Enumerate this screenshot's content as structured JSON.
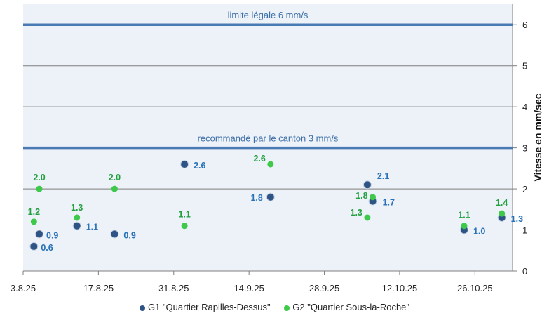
{
  "chart_data": {
    "type": "scatter",
    "ylabel": "Vitesse en mm/sec",
    "xlim": [
      "2025-08-03",
      "2025-11-02"
    ],
    "ylim": [
      0,
      6.5
    ],
    "x_ticks": [
      "3.8.25",
      "17.8.25",
      "31.8.25",
      "14.9.25",
      "28.9.25",
      "12.10.25",
      "26.10.25"
    ],
    "x_tick_dates": [
      "2025-08-03",
      "2025-08-17",
      "2025-08-31",
      "2025-09-14",
      "2025-09-28",
      "2025-10-12",
      "2025-10-26"
    ],
    "y_ticks": [
      "0",
      "1",
      "2",
      "3",
      "4",
      "5",
      "6"
    ],
    "grid": true,
    "legend_position": "bottom",
    "reference_lines": [
      {
        "y": 6,
        "label": "limite légale 6 mm/s",
        "color": "#4a7ab4"
      },
      {
        "y": 3,
        "label": "recommandé par le canton 3 mm/s",
        "color": "#4a7ab4"
      }
    ],
    "series": [
      {
        "name": "G1 \"Quartier Rapilles-Dessus\"",
        "color": "#2e5486",
        "label_color": "#2873b8",
        "points": [
          {
            "x": "2025-08-05",
            "y": 0.6,
            "label": "0.6"
          },
          {
            "x": "2025-08-06",
            "y": 0.9,
            "label": "0.9"
          },
          {
            "x": "2025-08-13",
            "y": 1.1,
            "label": "1.1"
          },
          {
            "x": "2025-08-20",
            "y": 0.9,
            "label": "0.9"
          },
          {
            "x": "2025-09-02",
            "y": 2.6,
            "label": "2.6"
          },
          {
            "x": "2025-09-18",
            "y": 1.8,
            "label": "1.8"
          },
          {
            "x": "2025-10-06",
            "y": 2.1,
            "label": "2.1"
          },
          {
            "x": "2025-10-07",
            "y": 1.7,
            "label": "1.7"
          },
          {
            "x": "2025-10-24",
            "y": 1.0,
            "label": "1.0"
          },
          {
            "x": "2025-10-31",
            "y": 1.3,
            "label": "1.3"
          }
        ]
      },
      {
        "name": "G2 \"Quartier Sous-la-Roche\"",
        "color": "#3ec94a",
        "label_color": "#22a040",
        "points": [
          {
            "x": "2025-08-05",
            "y": 1.2,
            "label": "1.2"
          },
          {
            "x": "2025-08-06",
            "y": 2.0,
            "label": "2.0"
          },
          {
            "x": "2025-08-13",
            "y": 1.3,
            "label": "1.3"
          },
          {
            "x": "2025-08-20",
            "y": 2.0,
            "label": "2.0"
          },
          {
            "x": "2025-09-02",
            "y": 1.1,
            "label": "1.1"
          },
          {
            "x": "2025-09-18",
            "y": 2.6,
            "label": "2.6"
          },
          {
            "x": "2025-10-06",
            "y": 1.3,
            "label": "1.3"
          },
          {
            "x": "2025-10-07",
            "y": 1.8,
            "label": "1.8"
          },
          {
            "x": "2025-10-24",
            "y": 1.1,
            "label": "1.1"
          },
          {
            "x": "2025-10-31",
            "y": 1.4,
            "label": "1.4"
          }
        ]
      }
    ]
  }
}
